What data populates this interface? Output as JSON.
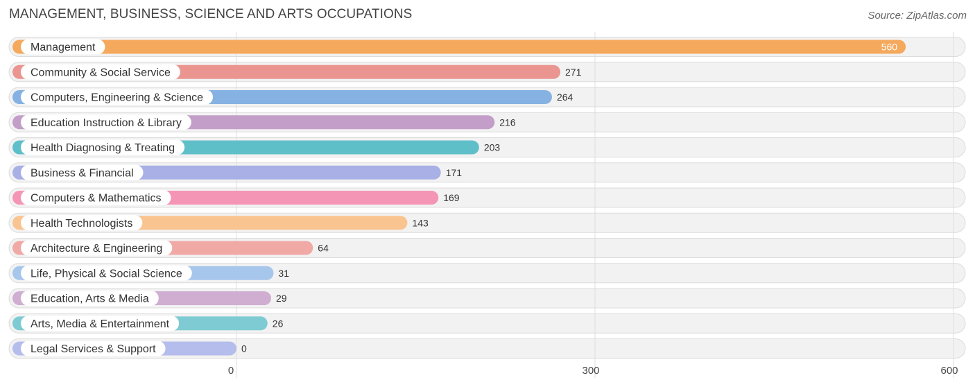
{
  "title": "MANAGEMENT, BUSINESS, SCIENCE AND ARTS OCCUPATIONS",
  "source": "Source: ZipAtlas.com",
  "chart_data": {
    "type": "bar",
    "orientation": "horizontal",
    "categories": [
      "Management",
      "Community & Social Service",
      "Computers, Engineering & Science",
      "Education Instruction & Library",
      "Health Diagnosing & Treating",
      "Business & Financial",
      "Computers & Mathematics",
      "Health Technologists",
      "Architecture & Engineering",
      "Life, Physical & Social Science",
      "Education, Arts & Media",
      "Arts, Media & Entertainment",
      "Legal Services & Support"
    ],
    "values": [
      560,
      271,
      264,
      216,
      203,
      171,
      169,
      143,
      64,
      31,
      29,
      26,
      0
    ],
    "colors": [
      "#f5a95c",
      "#ea9590",
      "#86b2e3",
      "#c39ec8",
      "#5fbfc9",
      "#a9b0e6",
      "#f595b6",
      "#f9c48f",
      "#f0a9a5",
      "#a6c6ec",
      "#cfaed2",
      "#7fcbd3",
      "#b5bdec"
    ],
    "xticks": [
      "0",
      "300",
      "600"
    ],
    "xlim": [
      0,
      600
    ],
    "grid": true
  }
}
